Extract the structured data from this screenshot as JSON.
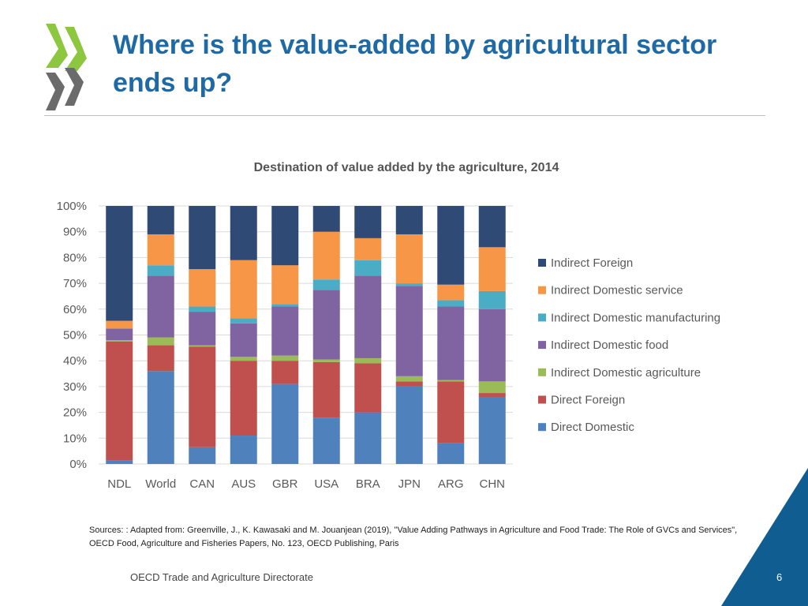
{
  "title": "Where is the value-added by agricultural sector ends up?",
  "chart_data": {
    "type": "bar",
    "stacked": true,
    "title": "Destination of value added by the agriculture, 2014",
    "categories": [
      "NDL",
      "World",
      "CAN",
      "AUS",
      "GBR",
      "USA",
      "BRA",
      "JPN",
      "ARG",
      "CHN"
    ],
    "yticks": [
      "0%",
      "10%",
      "20%",
      "30%",
      "40%",
      "50%",
      "60%",
      "70%",
      "80%",
      "90%",
      "100%"
    ],
    "ylim": [
      0,
      100
    ],
    "grid": true,
    "legend_position": "right",
    "series": [
      {
        "name": "Direct  Domestic",
        "color": "#4f81bd",
        "values": [
          1.5,
          36,
          6.5,
          11,
          31,
          18,
          20,
          30,
          8,
          26
        ]
      },
      {
        "name": "Direct  Foreign",
        "color": "#c0504d",
        "values": [
          46,
          10,
          39,
          29,
          9,
          21.5,
          19,
          2,
          24,
          1.5
        ]
      },
      {
        "name": "Indirect  Domestic agriculture",
        "color": "#9bbb59",
        "values": [
          0.5,
          3,
          0.5,
          1.5,
          2,
          1,
          2,
          2,
          0.5,
          4.5
        ]
      },
      {
        "name": "Indirect  Domestic food",
        "color": "#8064a2",
        "values": [
          4.5,
          24,
          13,
          13,
          19,
          27,
          32,
          35,
          28.5,
          28
        ]
      },
      {
        "name": "Indirect  Domestic manufacturing",
        "color": "#4bacc6",
        "values": [
          0,
          4,
          2,
          2,
          1,
          4,
          6,
          1,
          2.5,
          7
        ]
      },
      {
        "name": "Indirect  Domestic service",
        "color": "#f79646",
        "values": [
          3,
          12,
          14.5,
          22.5,
          15,
          18.5,
          8.5,
          19,
          6,
          17
        ]
      },
      {
        "name": "Indirect  Foreign",
        "color": "#2e4a75",
        "values": [
          44.5,
          11,
          24.5,
          21,
          23,
          10,
          12.5,
          11,
          30.5,
          16
        ]
      }
    ]
  },
  "sources": "Sources: : Adapted from: Greenville, J., K. Kawasaki and M. Jouanjean (2019), \"Value Adding Pathways in Agriculture and Food Trade: The Role of GVCs and Services\", OECD Food, Agriculture and Fisheries Papers, No. 123, OECD Publishing, Paris",
  "footer": "OECD Trade and Agriculture Directorate",
  "page_number": "6",
  "colors": {
    "title": "#1f6aa5",
    "logo_green": "#8dc63f",
    "corner_blue": "#0f5d91"
  }
}
